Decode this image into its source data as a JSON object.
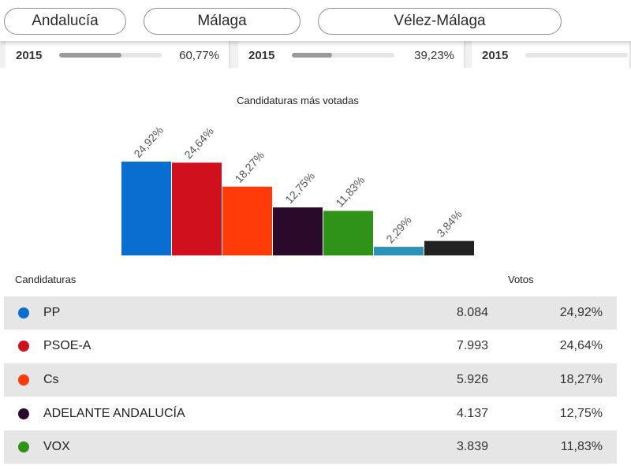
{
  "locations": [
    "Andalucía",
    "Málaga",
    "Vélez-Málaga"
  ],
  "participation": [
    {
      "year": "2015",
      "value": "60,77%",
      "fraction": 0.6077
    },
    {
      "year": "2015",
      "value": "39,23%",
      "fraction": 0.3923
    },
    {
      "year": "2015",
      "value": "",
      "fraction": 0.0
    }
  ],
  "chart_data": {
    "type": "bar",
    "title": "Candidaturas más votadas",
    "categories": [
      "PP",
      "PSOE-A",
      "Cs",
      "ADELANTE ANDALUCÍA",
      "VOX",
      "",
      ""
    ],
    "values": [
      24.92,
      24.64,
      18.27,
      12.75,
      11.83,
      2.29,
      3.84
    ],
    "labels": [
      "24,92%",
      "24,64%",
      "18,27%",
      "12,75%",
      "11,83%",
      "2,29%",
      "3,84%"
    ],
    "colors": [
      "#0a6ed1",
      "#d0101c",
      "#ff3b0a",
      "#2a0a2a",
      "#2e9318",
      "#2b93b8",
      "#222222"
    ],
    "ylim": [
      0,
      24.92
    ],
    "xlabel": "",
    "ylabel": ""
  },
  "table": {
    "header_candidates": "Candidaturas",
    "header_votes": "Votos",
    "rows": [
      {
        "name": "PP",
        "votes": "8.084",
        "pct": "24,92%",
        "color": "#0a6ed1"
      },
      {
        "name": "PSOE-A",
        "votes": "7.993",
        "pct": "24,64%",
        "color": "#d0101c"
      },
      {
        "name": "Cs",
        "votes": "5.926",
        "pct": "18,27%",
        "color": "#ff3b0a"
      },
      {
        "name": "ADELANTE ANDALUCÍA",
        "votes": "4.137",
        "pct": "12,75%",
        "color": "#2a0a2a"
      },
      {
        "name": "VOX",
        "votes": "3.839",
        "pct": "11,83%",
        "color": "#2e9318"
      }
    ]
  }
}
